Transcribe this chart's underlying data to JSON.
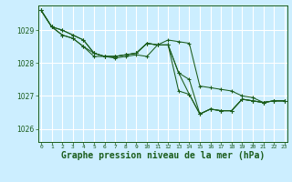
{
  "background_color": "#cceeff",
  "plot_bg_color": "#cceeff",
  "grid_color": "#ffffff",
  "line_color": "#1a5c1a",
  "xlabel": "Graphe pression niveau de la mer (hPa)",
  "xlabel_fontsize": 7,
  "xlim": [
    -0.3,
    23.3
  ],
  "ylim": [
    1025.6,
    1029.75
  ],
  "yticks": [
    1026,
    1027,
    1028,
    1029
  ],
  "xticks": [
    0,
    1,
    2,
    3,
    4,
    5,
    6,
    7,
    8,
    9,
    10,
    11,
    12,
    13,
    14,
    15,
    16,
    17,
    18,
    19,
    20,
    21,
    22,
    23
  ],
  "series": [
    {
      "x": [
        0,
        1,
        2,
        3,
        4,
        5,
        6,
        7,
        8,
        9,
        10,
        11,
        12,
        13,
        14,
        15,
        16,
        17,
        18,
        19,
        20,
        21,
        22,
        23
      ],
      "y": [
        1029.6,
        1029.1,
        1029.0,
        1028.85,
        1028.7,
        1028.3,
        1028.2,
        1028.2,
        1028.25,
        1028.3,
        1028.6,
        1028.55,
        1028.55,
        1027.7,
        1027.05,
        1026.45,
        1026.6,
        1026.55,
        1026.55,
        1026.9,
        1026.85,
        1026.8,
        1026.85,
        1026.85
      ]
    },
    {
      "x": [
        0,
        1,
        2,
        3,
        4,
        5,
        6,
        7,
        8,
        9,
        10,
        11,
        12,
        13,
        14,
        15,
        16,
        17,
        18,
        19,
        20,
        21,
        22,
        23
      ],
      "y": [
        1029.6,
        1029.1,
        1028.85,
        1028.75,
        1028.5,
        1028.3,
        1028.2,
        1028.15,
        1028.2,
        1028.25,
        1028.2,
        1028.55,
        1028.55,
        1027.15,
        1027.05,
        1026.45,
        1026.6,
        1026.55,
        1026.55,
        1026.9,
        1026.85,
        1026.8,
        1026.85,
        1026.85
      ]
    },
    {
      "x": [
        0,
        1,
        2,
        3,
        4,
        5,
        6,
        7,
        8,
        9,
        10,
        11,
        12,
        13,
        14,
        15,
        16,
        17,
        18,
        19,
        20,
        21,
        22,
        23
      ],
      "y": [
        1029.6,
        1029.1,
        1028.85,
        1028.75,
        1028.5,
        1028.2,
        1028.2,
        1028.2,
        1028.25,
        1028.3,
        1028.6,
        1028.55,
        1028.55,
        1027.7,
        1027.5,
        1026.45,
        1026.6,
        1026.55,
        1026.55,
        1026.9,
        1026.85,
        1026.8,
        1026.85,
        1026.85
      ]
    },
    {
      "x": [
        0,
        1,
        2,
        3,
        4,
        5,
        6,
        7,
        8,
        9,
        10,
        11,
        12,
        13,
        14,
        15,
        16,
        17,
        18,
        19,
        20,
        21,
        22,
        23
      ],
      "y": [
        1029.6,
        1029.1,
        1029.0,
        1028.85,
        1028.7,
        1028.3,
        1028.2,
        1028.2,
        1028.25,
        1028.3,
        1028.6,
        1028.55,
        1028.7,
        1028.65,
        1028.6,
        1027.3,
        1027.25,
        1027.2,
        1027.15,
        1027.0,
        1026.95,
        1026.8,
        1026.85,
        1026.85
      ]
    }
  ]
}
